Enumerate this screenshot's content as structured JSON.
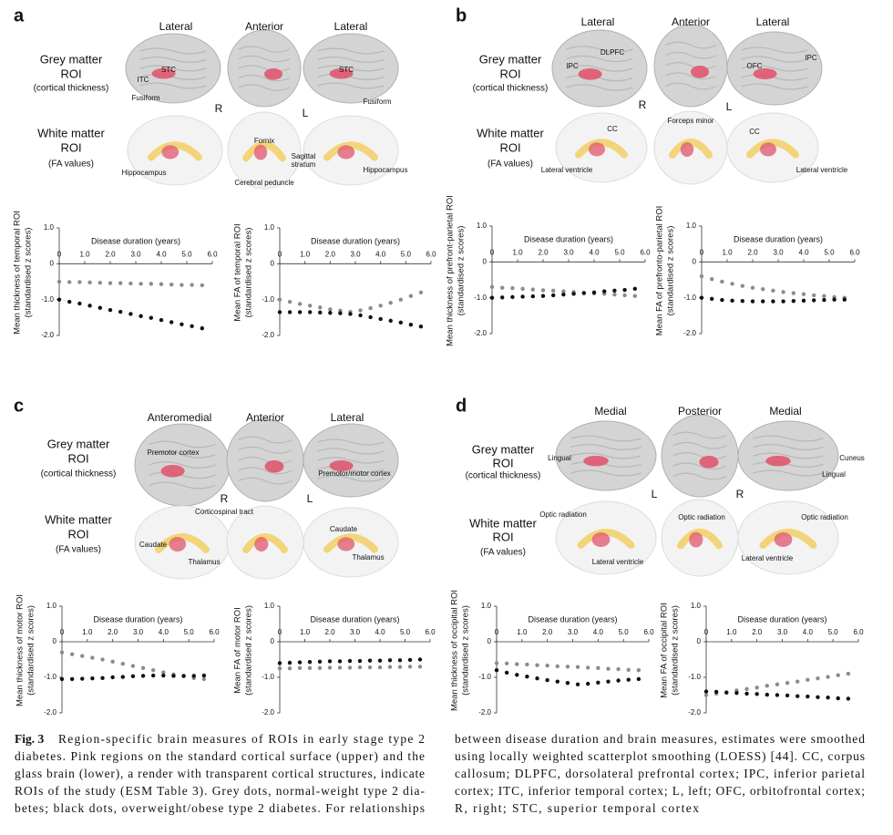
{
  "panels": [
    {
      "letter": "a",
      "views": [
        "Lateral",
        "Anterior",
        "Lateral"
      ],
      "grey_roi": [
        "Grey matter",
        "ROI",
        "(cortical thickness)"
      ],
      "white_roi": [
        "White matter",
        "ROI",
        "(FA values)"
      ],
      "side_labels": [
        "R",
        "L"
      ],
      "regions": [
        "ITC",
        "STC",
        "Fusiform",
        "STC",
        "Fusiform",
        "Fornix",
        "Sagittal",
        "stratum",
        "Hippocampus",
        "Cerebral peduncle",
        "Hippocampus"
      ]
    },
    {
      "letter": "b",
      "views": [
        "Lateral",
        "Anterior",
        "Lateral"
      ],
      "grey_roi": [
        "Grey matter",
        "ROI",
        "(cortical thickness)"
      ],
      "white_roi": [
        "White matter",
        "ROI",
        "(FA values)"
      ],
      "side_labels": [
        "R",
        "L"
      ],
      "regions": [
        "DLPFC",
        "IPC",
        "OFC",
        "IPC",
        "CC",
        "Forceps minor",
        "CC",
        "Lateral ventricle",
        "Lateral ventricle"
      ]
    },
    {
      "letter": "c",
      "views": [
        "Anteromedial",
        "Anterior",
        "Lateral"
      ],
      "grey_roi": [
        "Grey matter",
        "ROI",
        "(cortical thickness)"
      ],
      "white_roi": [
        "White matter",
        "ROI",
        "(FA values)"
      ],
      "side_labels": [
        "R",
        "L"
      ],
      "regions": [
        "Premotor cortex",
        "Premotor/motor cortex",
        "Corticospinal tract",
        "Caudate",
        "Thalamus",
        "Caudate",
        "Thalamus"
      ]
    },
    {
      "letter": "d",
      "views": [
        "Medial",
        "Posterior",
        "Medial"
      ],
      "grey_roi": [
        "Grey matter",
        "ROI",
        "(cortical thickness)"
      ],
      "white_roi": [
        "White matter",
        "ROI",
        "(FA values)"
      ],
      "side_labels": [
        "L",
        "R"
      ],
      "regions": [
        "Lingual",
        "Cuneus",
        "Lingual",
        "Optic radiation",
        "Optic radiation",
        "Optic radiation",
        "Lateral ventricle",
        "Lateral ventricle"
      ]
    }
  ],
  "chart_data": [
    {
      "type": "scatter",
      "xlabel": "Disease duration (years)",
      "ylabel": [
        "Mean thickness of temporal ROI",
        "(standardised z scores)"
      ],
      "xlim": [
        0,
        6
      ],
      "xticks": [
        0,
        {
          "value": 1,
          "label": "1.0"
        },
        {
          "value": 2,
          "label": "2.0"
        },
        {
          "value": 3,
          "label": "3.0"
        },
        {
          "value": 4,
          "label": "4.0"
        },
        {
          "value": 5,
          "label": "5.0"
        },
        {
          "value": 6,
          "label": "6.0"
        }
      ],
      "ylim": [
        -2,
        1
      ],
      "yticks": [
        {
          "value": 1,
          "label": "1.0"
        },
        0,
        {
          "value": -1,
          "label": "-1.0"
        },
        {
          "value": -2,
          "label": "-2.0"
        }
      ],
      "x": [
        0,
        0.4,
        0.8,
        1.2,
        1.6,
        2,
        2.4,
        2.8,
        3.2,
        3.6,
        4,
        4.4,
        4.8,
        5.2,
        5.6
      ],
      "series": [
        {
          "color": "#8c8c8c",
          "values": [
            -0.5,
            -0.51,
            -0.51,
            -0.52,
            -0.53,
            -0.54,
            -0.54,
            -0.55,
            -0.56,
            -0.56,
            -0.57,
            -0.58,
            -0.59,
            -0.59,
            -0.6
          ]
        },
        {
          "color": "#111111",
          "values": [
            -1.0,
            -1.06,
            -1.11,
            -1.17,
            -1.23,
            -1.29,
            -1.34,
            -1.4,
            -1.46,
            -1.51,
            -1.57,
            -1.63,
            -1.69,
            -1.74,
            -1.8
          ]
        }
      ]
    },
    {
      "type": "scatter",
      "xlabel": "Disease duration (years)",
      "ylabel": [
        "Mean FA of temporal ROI",
        "(standardised z scores)"
      ],
      "xlim": [
        0,
        6
      ],
      "xticks": [
        0,
        {
          "value": 1,
          "label": "1.0"
        },
        {
          "value": 2,
          "label": "2.0"
        },
        {
          "value": 3,
          "label": "3.0"
        },
        {
          "value": 4,
          "label": "4.0"
        },
        {
          "value": 5,
          "label": "5.0"
        },
        {
          "value": 6,
          "label": "6.0"
        }
      ],
      "ylim": [
        -2,
        1
      ],
      "yticks": [
        {
          "value": 1,
          "label": "1.0"
        },
        0,
        {
          "value": -1,
          "label": "-1.0"
        },
        {
          "value": -2,
          "label": "-2.0"
        }
      ],
      "x": [
        0,
        0.4,
        0.8,
        1.2,
        1.6,
        2,
        2.4,
        2.8,
        3.2,
        3.6,
        4,
        4.4,
        4.8,
        5.2,
        5.6
      ],
      "series": [
        {
          "color": "#8c8c8c",
          "values": [
            -1.0,
            -1.06,
            -1.12,
            -1.17,
            -1.22,
            -1.27,
            -1.31,
            -1.34,
            -1.3,
            -1.24,
            -1.17,
            -1.09,
            -1.0,
            -0.9,
            -0.8
          ]
        },
        {
          "color": "#111111",
          "values": [
            -1.35,
            -1.35,
            -1.35,
            -1.35,
            -1.36,
            -1.37,
            -1.38,
            -1.4,
            -1.44,
            -1.49,
            -1.54,
            -1.59,
            -1.64,
            -1.7,
            -1.75
          ]
        }
      ]
    },
    {
      "type": "scatter",
      "xlabel": "Disease duration (years)",
      "ylabel": [
        "Mean thickness of prefront-parietal ROI",
        "(standardised z scores)"
      ],
      "xlim": [
        0,
        6
      ],
      "xticks": [
        0,
        {
          "value": 1,
          "label": "1.0"
        },
        {
          "value": 2,
          "label": "2.0"
        },
        {
          "value": 3,
          "label": "3.0"
        },
        {
          "value": 4,
          "label": "4.0"
        },
        {
          "value": 5,
          "label": "5.0"
        },
        {
          "value": 6,
          "label": "6.0"
        }
      ],
      "ylim": [
        -2,
        1
      ],
      "yticks": [
        {
          "value": 1,
          "label": "1.0"
        },
        0,
        {
          "value": -1,
          "label": "-1.0"
        },
        {
          "value": -2,
          "label": "-2.0"
        }
      ],
      "x": [
        0,
        0.4,
        0.8,
        1.2,
        1.6,
        2,
        2.4,
        2.8,
        3.2,
        3.6,
        4,
        4.4,
        4.8,
        5.2,
        5.6
      ],
      "series": [
        {
          "color": "#8c8c8c",
          "values": [
            -0.7,
            -0.72,
            -0.73,
            -0.75,
            -0.77,
            -0.79,
            -0.8,
            -0.82,
            -0.84,
            -0.86,
            -0.88,
            -0.89,
            -0.91,
            -0.93,
            -0.95
          ]
        },
        {
          "color": "#111111",
          "values": [
            -1.0,
            -0.99,
            -0.98,
            -0.97,
            -0.96,
            -0.95,
            -0.93,
            -0.91,
            -0.89,
            -0.87,
            -0.85,
            -0.82,
            -0.8,
            -0.78,
            -0.75
          ]
        }
      ]
    },
    {
      "type": "scatter",
      "xlabel": "Disease duration (years)",
      "ylabel": [
        "Mean FA of prefronto-parietal ROI",
        "(standardised z scores)"
      ],
      "xlim": [
        0,
        6
      ],
      "xticks": [
        0,
        {
          "value": 1,
          "label": "1.0"
        },
        {
          "value": 2,
          "label": "2.0"
        },
        {
          "value": 3,
          "label": "3.0"
        },
        {
          "value": 4,
          "label": "4.0"
        },
        {
          "value": 5,
          "label": "5.0"
        },
        {
          "value": 6,
          "label": "6.0"
        }
      ],
      "ylim": [
        -2,
        1
      ],
      "yticks": [
        {
          "value": 1,
          "label": "1.0"
        },
        0,
        {
          "value": -1,
          "label": "-1.0"
        },
        {
          "value": -2,
          "label": "-2.0"
        }
      ],
      "x": [
        0,
        0.4,
        0.8,
        1.2,
        1.6,
        2,
        2.4,
        2.8,
        3.2,
        3.6,
        4,
        4.4,
        4.8,
        5.2,
        5.6
      ],
      "series": [
        {
          "color": "#8c8c8c",
          "values": [
            -0.4,
            -0.48,
            -0.55,
            -0.61,
            -0.67,
            -0.72,
            -0.76,
            -0.8,
            -0.84,
            -0.87,
            -0.9,
            -0.93,
            -0.95,
            -0.98,
            -1.0
          ]
        },
        {
          "color": "#111111",
          "values": [
            -1.0,
            -1.03,
            -1.06,
            -1.08,
            -1.09,
            -1.1,
            -1.1,
            -1.1,
            -1.1,
            -1.09,
            -1.08,
            -1.07,
            -1.06,
            -1.05,
            -1.05
          ]
        }
      ]
    },
    {
      "type": "scatter",
      "xlabel": "Disease duration (years)",
      "ylabel": [
        "Mean thickness of motor ROI",
        "(standardised z scores)"
      ],
      "xlim": [
        0,
        6
      ],
      "xticks": [
        0,
        {
          "value": 1,
          "label": "1.0"
        },
        {
          "value": 2,
          "label": "2.0"
        },
        {
          "value": 3,
          "label": "3.0"
        },
        {
          "value": 4,
          "label": "4.0"
        },
        {
          "value": 5,
          "label": "5.0"
        },
        {
          "value": 6,
          "label": "6.0"
        }
      ],
      "ylim": [
        -2,
        1
      ],
      "yticks": [
        {
          "value": 1,
          "label": "1.0"
        },
        0,
        {
          "value": -1,
          "label": "-1.0"
        },
        {
          "value": -2,
          "label": "-2.0"
        }
      ],
      "x": [
        0,
        0.4,
        0.8,
        1.2,
        1.6,
        2,
        2.4,
        2.8,
        3.2,
        3.6,
        4,
        4.4,
        4.8,
        5.2,
        5.6
      ],
      "series": [
        {
          "color": "#8c8c8c",
          "values": [
            -0.3,
            -0.35,
            -0.4,
            -0.45,
            -0.5,
            -0.56,
            -0.62,
            -0.68,
            -0.74,
            -0.8,
            -0.86,
            -0.92,
            -0.97,
            -1.02,
            -1.05
          ]
        },
        {
          "color": "#111111",
          "values": [
            -1.05,
            -1.05,
            -1.04,
            -1.03,
            -1.02,
            -1.0,
            -0.99,
            -0.97,
            -0.96,
            -0.95,
            -0.95,
            -0.96,
            -0.96,
            -0.96,
            -0.95
          ]
        }
      ]
    },
    {
      "type": "scatter",
      "xlabel": "Disease duration (years)",
      "ylabel": [
        "Mean FA of motor ROI",
        "(standardised z scores)"
      ],
      "xlim": [
        0,
        6
      ],
      "xticks": [
        0,
        {
          "value": 1,
          "label": "1.0"
        },
        {
          "value": 2,
          "label": "2.0"
        },
        {
          "value": 3,
          "label": "3.0"
        },
        {
          "value": 4,
          "label": "4.0"
        },
        {
          "value": 5,
          "label": "5.0"
        },
        {
          "value": 6,
          "label": "6.0"
        }
      ],
      "ylim": [
        -2,
        1
      ],
      "yticks": [
        {
          "value": 1,
          "label": "1.0"
        },
        0,
        {
          "value": -1,
          "label": "-1.0"
        },
        {
          "value": -2,
          "label": "-2.0"
        }
      ],
      "x": [
        0,
        0.4,
        0.8,
        1.2,
        1.6,
        2,
        2.4,
        2.8,
        3.2,
        3.6,
        4,
        4.4,
        4.8,
        5.2,
        5.6
      ],
      "series": [
        {
          "color": "#8c8c8c",
          "values": [
            -0.75,
            -0.75,
            -0.74,
            -0.74,
            -0.74,
            -0.73,
            -0.73,
            -0.73,
            -0.72,
            -0.72,
            -0.72,
            -0.71,
            -0.71,
            -0.7,
            -0.7
          ]
        },
        {
          "color": "#111111",
          "values": [
            -0.6,
            -0.59,
            -0.58,
            -0.57,
            -0.56,
            -0.55,
            -0.55,
            -0.54,
            -0.54,
            -0.53,
            -0.53,
            -0.52,
            -0.52,
            -0.51,
            -0.5
          ]
        }
      ]
    },
    {
      "type": "scatter",
      "xlabel": "Disease duration (years)",
      "ylabel": [
        "Mean thickness of occipital ROI",
        "(standardised z scores)"
      ],
      "xlim": [
        0,
        6
      ],
      "xticks": [
        0,
        {
          "value": 1,
          "label": "1.0"
        },
        {
          "value": 2,
          "label": "2.0"
        },
        {
          "value": 3,
          "label": "3.0"
        },
        {
          "value": 4,
          "label": "4.0"
        },
        {
          "value": 5,
          "label": "5.0"
        },
        {
          "value": 6,
          "label": "6.0"
        }
      ],
      "ylim": [
        -2,
        1
      ],
      "yticks": [
        {
          "value": 1,
          "label": "1.0"
        },
        0,
        {
          "value": -1,
          "label": "-1.0"
        },
        {
          "value": -2,
          "label": "-2.0"
        }
      ],
      "x": [
        0,
        0.4,
        0.8,
        1.2,
        1.6,
        2,
        2.4,
        2.8,
        3.2,
        3.6,
        4,
        4.4,
        4.8,
        5.2,
        5.6
      ],
      "series": [
        {
          "color": "#8c8c8c",
          "values": [
            -0.6,
            -0.61,
            -0.63,
            -0.64,
            -0.66,
            -0.67,
            -0.69,
            -0.7,
            -0.71,
            -0.73,
            -0.74,
            -0.76,
            -0.77,
            -0.79,
            -0.8
          ]
        },
        {
          "color": "#111111",
          "values": [
            -0.8,
            -0.87,
            -0.93,
            -0.98,
            -1.03,
            -1.08,
            -1.12,
            -1.16,
            -1.2,
            -1.18,
            -1.15,
            -1.12,
            -1.09,
            -1.07,
            -1.05
          ]
        }
      ]
    },
    {
      "type": "scatter",
      "xlabel": "Disease duration (years)",
      "ylabel": [
        "Mean FA of occipital ROI",
        "(standardised z scores)"
      ],
      "xlim": [
        0,
        6
      ],
      "xticks": [
        0,
        {
          "value": 1,
          "label": "1.0"
        },
        {
          "value": 2,
          "label": "2.0"
        },
        {
          "value": 3,
          "label": "3.0"
        },
        {
          "value": 4,
          "label": "4.0"
        },
        {
          "value": 5,
          "label": "5.0"
        },
        {
          "value": 6,
          "label": "6.0"
        }
      ],
      "ylim": [
        -2,
        1
      ],
      "yticks": [
        {
          "value": 1,
          "label": "1.0"
        },
        0,
        {
          "value": -1,
          "label": "-1.0"
        },
        {
          "value": -2,
          "label": "-2.0"
        }
      ],
      "x": [
        0,
        0.4,
        0.8,
        1.2,
        1.6,
        2,
        2.4,
        2.8,
        3.2,
        3.6,
        4,
        4.4,
        4.8,
        5.2,
        5.6
      ],
      "series": [
        {
          "color": "#8c8c8c",
          "values": [
            -1.5,
            -1.46,
            -1.42,
            -1.37,
            -1.33,
            -1.29,
            -1.24,
            -1.2,
            -1.16,
            -1.12,
            -1.07,
            -1.03,
            -0.99,
            -0.94,
            -0.9
          ]
        },
        {
          "color": "#111111",
          "values": [
            -1.4,
            -1.41,
            -1.43,
            -1.44,
            -1.46,
            -1.47,
            -1.49,
            -1.5,
            -1.51,
            -1.53,
            -1.54,
            -1.56,
            -1.57,
            -1.59,
            -1.6
          ]
        }
      ]
    }
  ],
  "caption": {
    "label": "Fig. 3",
    "left": [
      "Region-specific brain measures of ROIs in early stage type 2",
      "diabetes. Pink regions on the standard cortical surface (upper) and the",
      "glass brain (lower), a render with transparent cortical structures, indicate",
      "ROIs of the study (ESM Table 3). Grey dots, normal-weight type 2 dia-",
      "betes; black dots, overweight/obese type 2 diabetes. For relationships"
    ],
    "right": [
      "between disease duration and brain measures, estimates were smoothed",
      "using locally weighted scatterplot smoothing (LOESS) [44]. CC, corpus",
      "callosum; DLPFC, dorsolateral prefrontal cortex; IPC, inferior parietal",
      "cortex; ITC, inferior temporal cortex; L, left; OFC, orbitofrontal cortex;",
      "R, right; STC, superior temporal cortex"
    ]
  }
}
